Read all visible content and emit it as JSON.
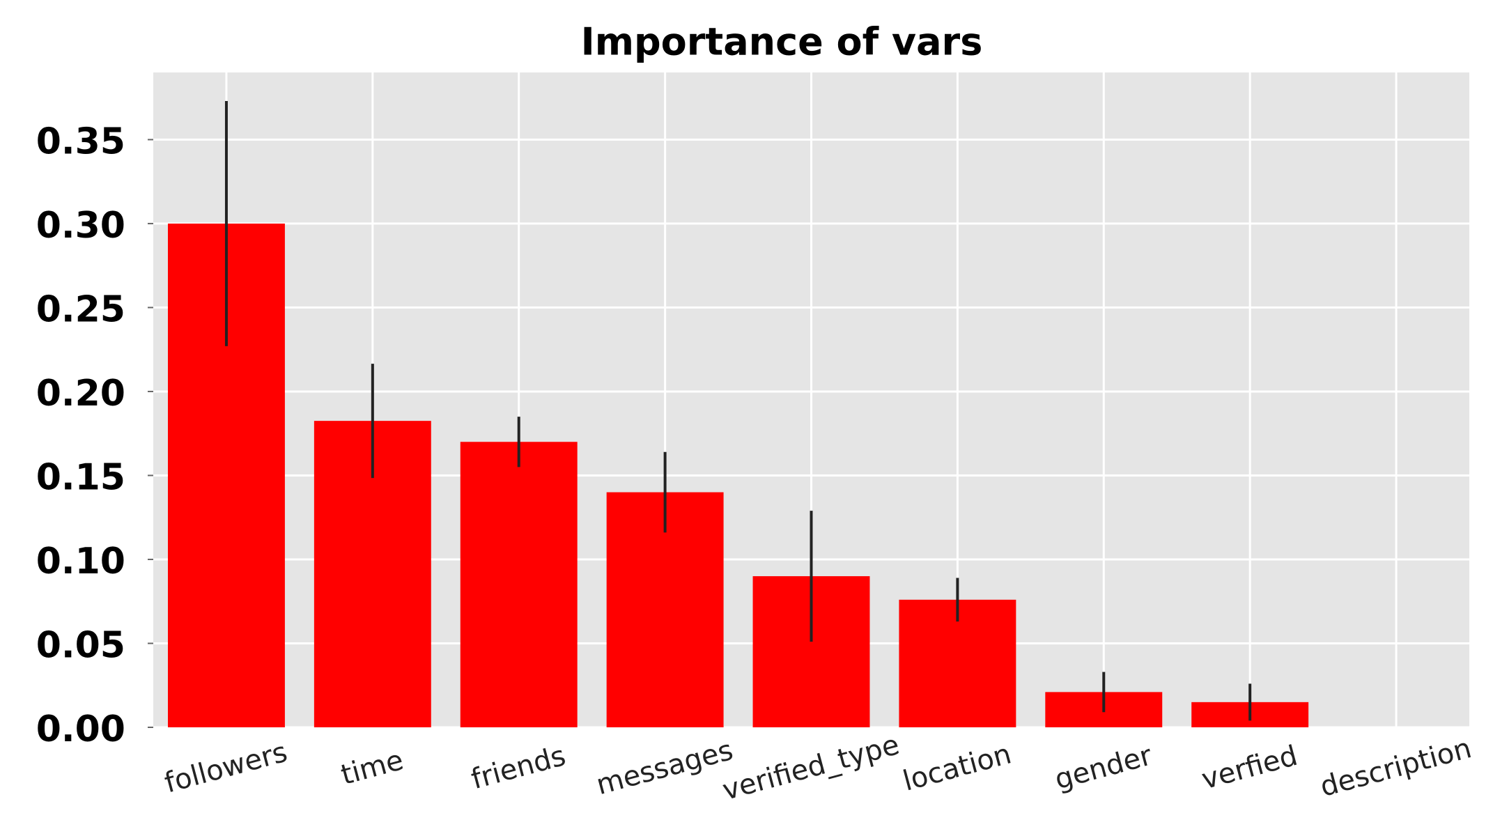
{
  "chart_data": {
    "type": "bar",
    "title": "Importance of vars",
    "categories": [
      "followers",
      "time",
      "friends",
      "messages",
      "verified_type",
      "location",
      "gender",
      "verfied",
      "description"
    ],
    "values": [
      0.3,
      0.1825,
      0.17,
      0.14,
      0.09,
      0.076,
      0.021,
      0.015,
      0
    ],
    "errors": [
      0.073,
      0.034,
      0.015,
      0.024,
      0.039,
      0.013,
      0.012,
      0.011,
      0
    ],
    "color": "#ff0000",
    "error_color": "#222222",
    "background": "#e5e5e5",
    "ylim": [
      0,
      0.39
    ],
    "yticks": [
      {
        "value": 0,
        "label": "0.00"
      },
      0.05,
      {
        "value": 0.1,
        "label": "0.10"
      },
      0.15,
      {
        "value": 0.2,
        "label": "0.20"
      },
      0.25,
      {
        "value": 0.3,
        "label": "0.30"
      },
      0.35
    ],
    "grid": true
  }
}
